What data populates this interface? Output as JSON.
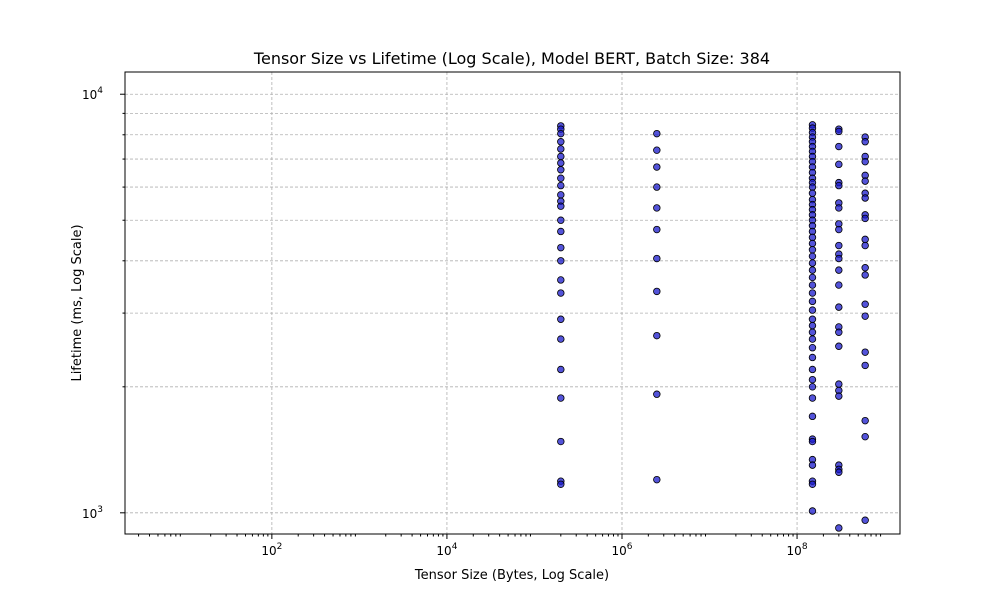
{
  "chart_data": {
    "type": "scatter",
    "title": "Tensor Size vs Lifetime (Log Scale), Model BERT, Batch Size: 384",
    "xlabel": "Tensor Size (Bytes, Log Scale)",
    "ylabel": "Lifetime (ms, Log Scale)",
    "xscale": "log",
    "yscale": "log",
    "xlim": [
      2.1,
      1500000000
    ],
    "ylim": [
      890,
      11300
    ],
    "grid": true,
    "x_ticks": [
      {
        "value": 100,
        "base": "10",
        "exp": "2"
      },
      {
        "value": 10000,
        "base": "10",
        "exp": "4"
      },
      {
        "value": 1000000,
        "base": "10",
        "exp": "6"
      },
      {
        "value": 100000000,
        "base": "10",
        "exp": "8"
      }
    ],
    "y_ticks": [
      {
        "value": 1000,
        "base": "10",
        "exp": "3"
      },
      {
        "value": 10000,
        "base": "10",
        "exp": "4"
      }
    ],
    "y_minor_grid": [
      2000,
      3000,
      4000,
      5000,
      6000,
      7000,
      8000,
      9000
    ],
    "color": "#1a1acc",
    "series": [
      {
        "x": 200000,
        "y": [
          8400,
          8250,
          8050,
          7700,
          7400,
          7100,
          6850,
          6600,
          6300,
          6050,
          5750,
          5550,
          5400,
          5000,
          4700,
          4300,
          4000,
          3600,
          3350,
          2900,
          2600,
          2200,
          1880,
          1480,
          1190,
          1170
        ]
      },
      {
        "x": 2500000,
        "y": [
          8050,
          7350,
          6700,
          6000,
          5350,
          4750,
          4050,
          3380,
          2650,
          1920,
          1200
        ]
      },
      {
        "x": 150000000,
        "y": [
          8450,
          8300,
          8100,
          7900,
          7700,
          7500,
          7300,
          7100,
          6900,
          6700,
          6500,
          6300,
          6150,
          6000,
          5800,
          5600,
          5450,
          5300,
          5150,
          5000,
          4850,
          4700,
          4550,
          4400,
          4250,
          4100,
          3950,
          3800,
          3650,
          3500,
          3350,
          3200,
          3050,
          2900,
          2800,
          2700,
          2600,
          2480,
          2350,
          2200,
          2080,
          2000,
          1880,
          1700,
          1500,
          1480,
          1340,
          1300,
          1190,
          1170,
          1010
        ]
      },
      {
        "x": 300000000,
        "y": [
          8250,
          8150,
          7500,
          6800,
          6150,
          6050,
          5500,
          5350,
          4900,
          4750,
          4350,
          4150,
          4050,
          3800,
          3500,
          3100,
          2780,
          2700,
          2500,
          2030,
          1960,
          1900,
          1300,
          1270,
          1250,
          920
        ]
      },
      {
        "x": 600000000,
        "y": [
          7900,
          7700,
          7100,
          6900,
          6400,
          6200,
          5800,
          5650,
          5150,
          5050,
          4500,
          4350,
          3850,
          3700,
          3150,
          2950,
          2420,
          2250,
          1660,
          1520,
          960
        ]
      }
    ]
  }
}
